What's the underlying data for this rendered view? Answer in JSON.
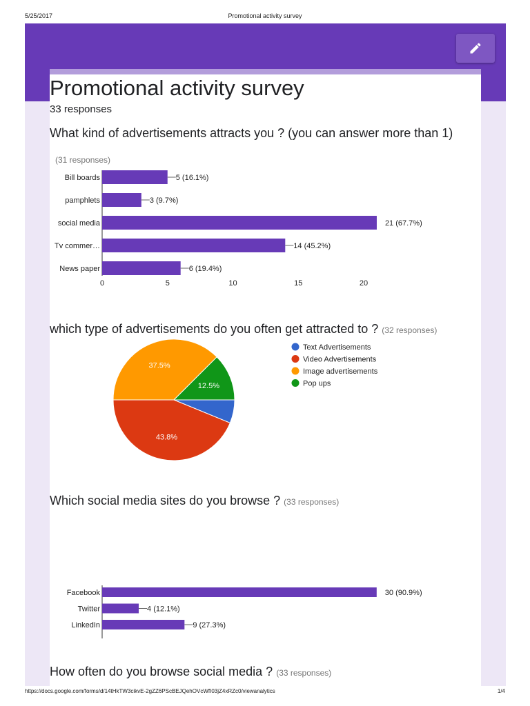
{
  "print_header": {
    "date": "5/25/2017",
    "title": "Promotional activity survey"
  },
  "print_footer": {
    "url": "https://docs.google.com/forms/d/14tHkTW3cikvE-2gZZ6PScBEJQehOVcWfI03jZ4xRZc0/viewanalytics",
    "page": "1/4"
  },
  "theme": {
    "banner": "#673ab7",
    "accent": "#b39ddb",
    "bar": "#673ab7",
    "background": "#ede7f6"
  },
  "form": {
    "title": "Promotional activity survey",
    "responses": "33 responses",
    "edit_icon": "pencil-icon"
  },
  "questions": [
    {
      "title": "What kind of advertisements attracts you ? (you can answer more than 1)",
      "responses": "(31 responses)",
      "chart_data": {
        "type": "bar",
        "orientation": "horizontal",
        "categories": [
          "Bill boards",
          "pamphlets",
          "social media",
          "Tv commer…",
          "News paper"
        ],
        "values": [
          5,
          3,
          21,
          14,
          6
        ],
        "labels": [
          "5 (16.1%)",
          "3 (9.7%)",
          "21 (67.7%)",
          "14 (45.2%)",
          "6 (19.4%)"
        ],
        "xlim": [
          0,
          21
        ],
        "xticks": [
          "0",
          "5",
          "10",
          "15",
          "20"
        ],
        "grid": false
      }
    },
    {
      "title": "which type of advertisements do you often get attracted to ?",
      "responses": "(32 responses)",
      "chart_data": {
        "type": "pie",
        "categories": [
          "Text Advertisements",
          "Video Advertisements",
          "Image advertisements",
          "Pop ups"
        ],
        "values": [
          6.2,
          43.8,
          37.5,
          12.5
        ],
        "slice_labels": [
          "",
          "43.8%",
          "37.5%",
          "12.5%"
        ],
        "colors": [
          "#3366cc",
          "#dc3912",
          "#ff9900",
          "#109618"
        ],
        "legend": "right"
      }
    },
    {
      "title": "Which social media sites do you browse ?",
      "responses": "(33 responses)",
      "chart_data": {
        "type": "bar",
        "orientation": "horizontal",
        "categories": [
          "Facebook",
          "Twitter",
          "LinkedIn"
        ],
        "values": [
          30,
          4,
          9
        ],
        "labels": [
          "30 (90.9%)",
          "4 (12.1%)",
          "9 (27.3%)"
        ],
        "xlim": [
          0,
          30
        ],
        "grid": false
      }
    },
    {
      "title": "How often do you browse social media ?",
      "responses": "(33 responses)"
    }
  ]
}
